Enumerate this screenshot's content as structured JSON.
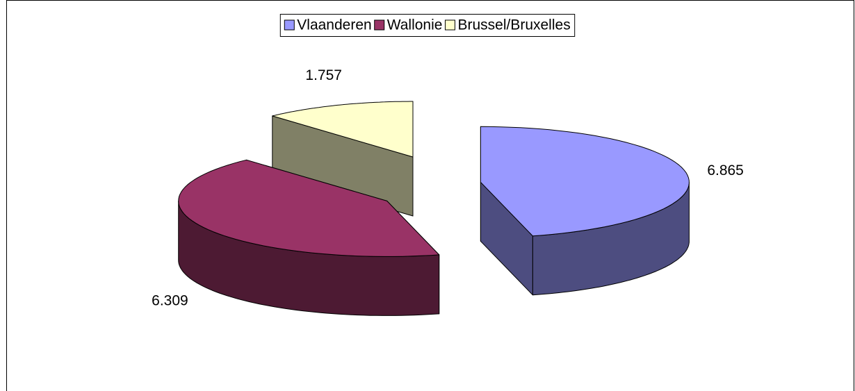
{
  "chart_data": {
    "type": "pie3d",
    "categories": [
      "Vlaanderen",
      "Wallonie",
      "Brussel/Bruxelles"
    ],
    "values": [
      6.865,
      6.309,
      1.757
    ],
    "colors": [
      "#9999ff",
      "#993366",
      "#ffffcc"
    ],
    "legend": "top"
  }
}
